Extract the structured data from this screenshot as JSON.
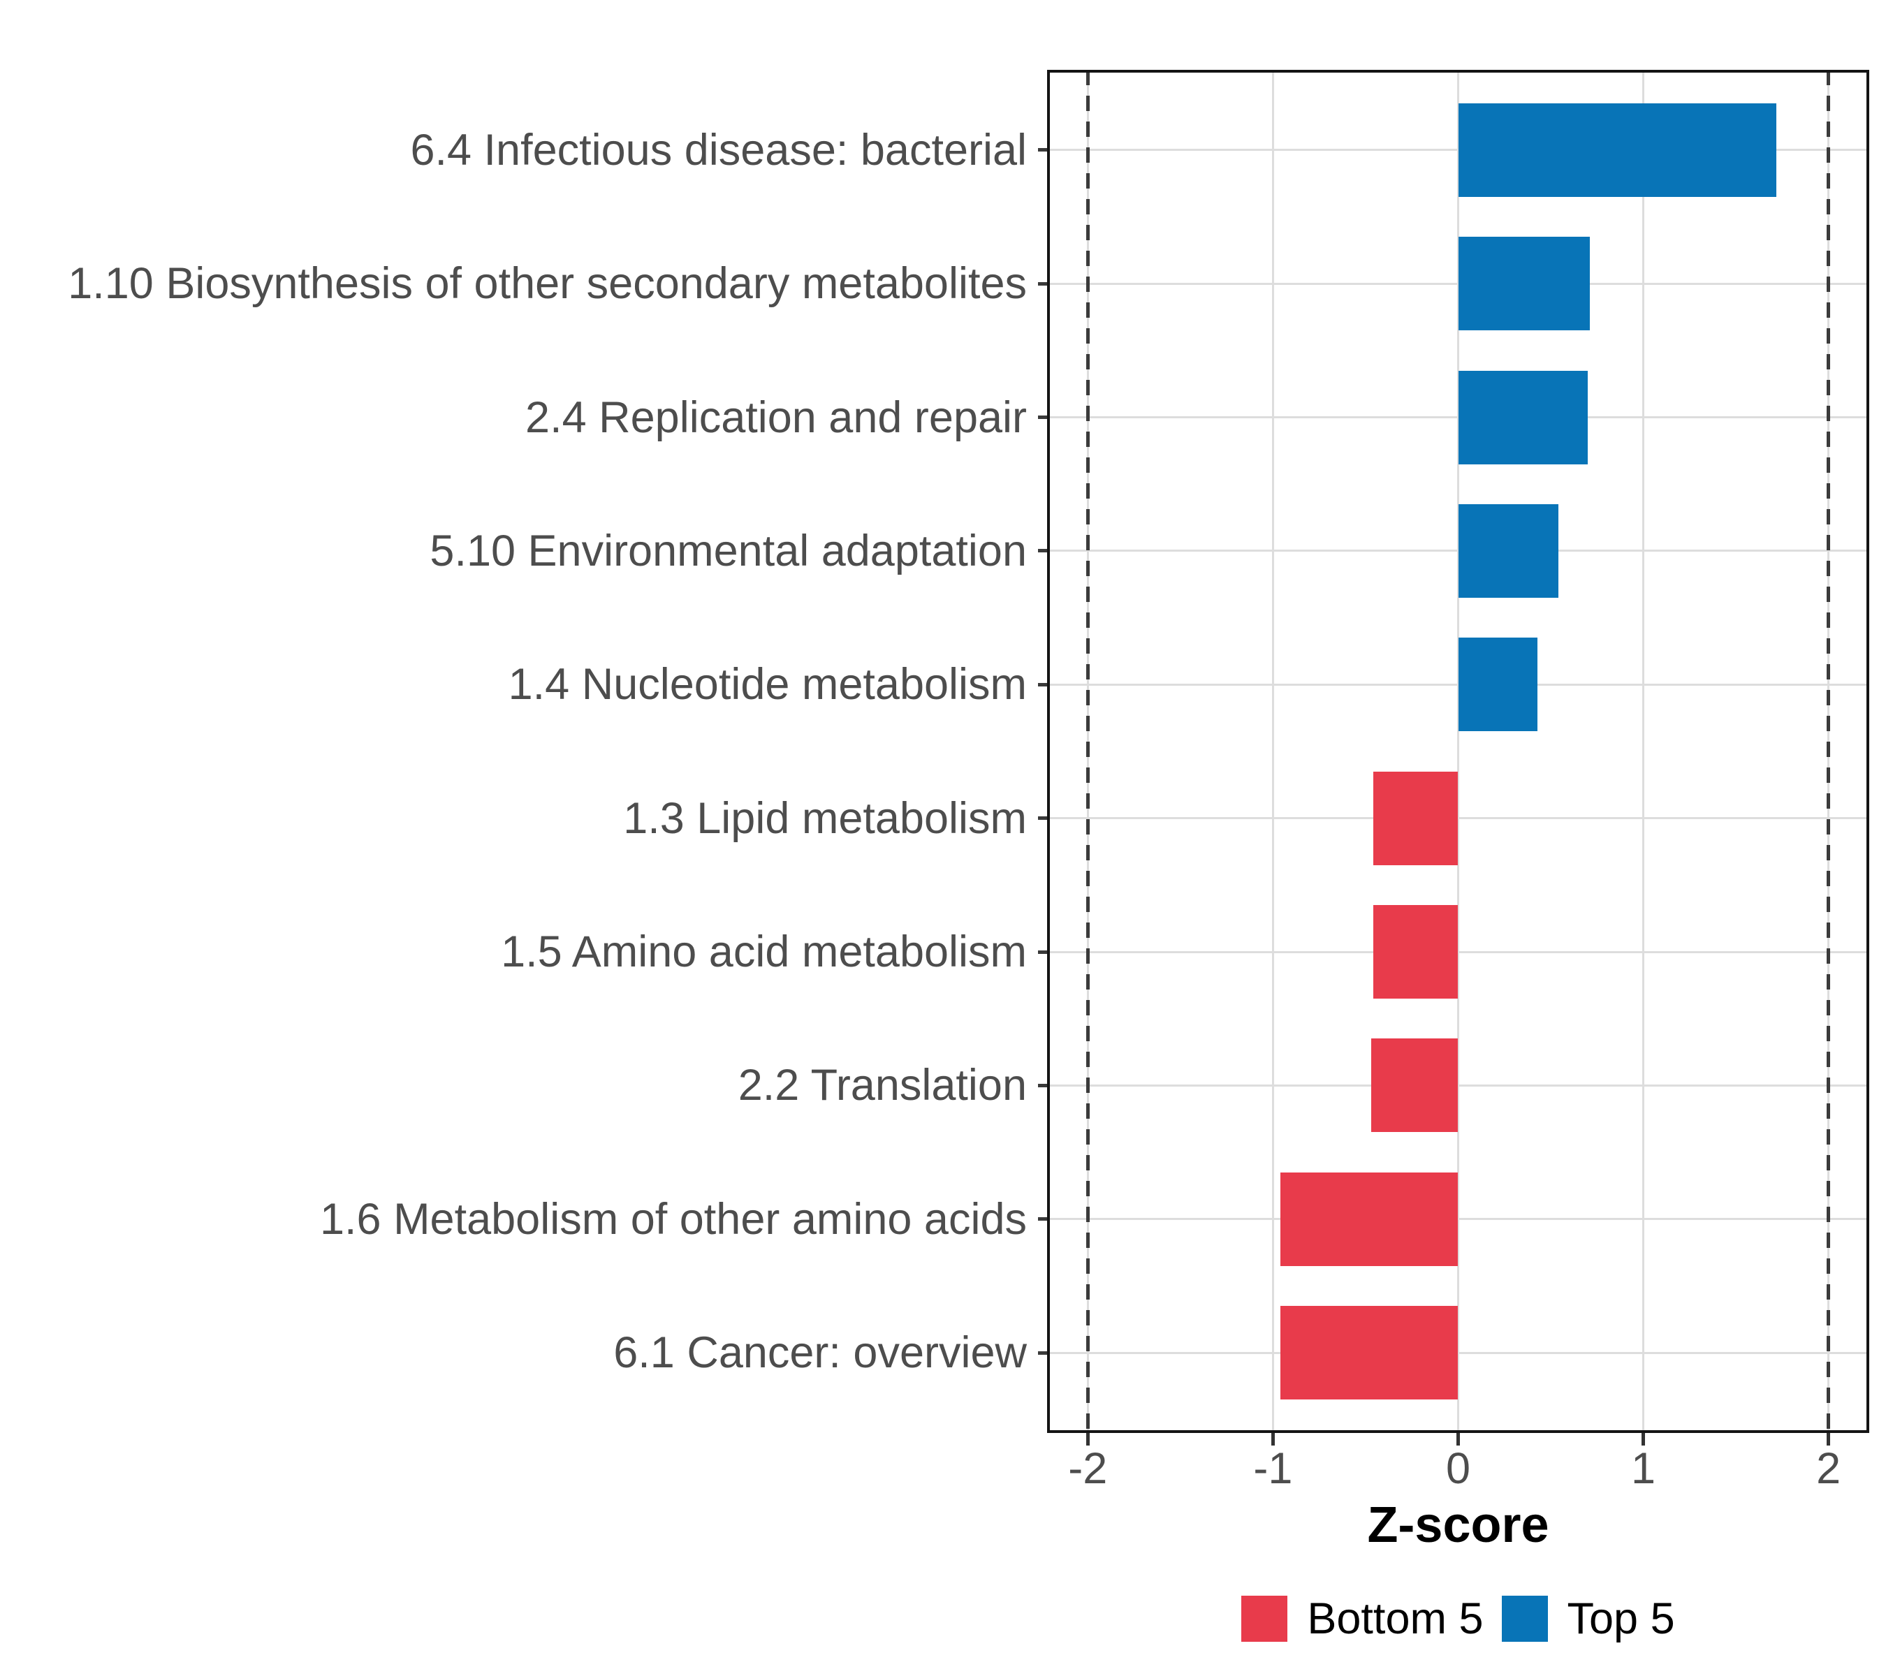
{
  "chart_data": {
    "type": "bar",
    "orientation": "horizontal",
    "title": "",
    "xlabel": "Z-score",
    "ylabel": "",
    "xlim": [
      -2.22,
      2.22
    ],
    "x_ticks": [
      -2,
      -1,
      0,
      1,
      2
    ],
    "x_tick_labels": [
      "-2",
      "-1",
      "0",
      "1",
      "2"
    ],
    "reference_lines_x": [
      -2,
      2
    ],
    "grid": "major-only",
    "legend_position": "bottom",
    "categories": [
      "6.4 Infectious disease: bacterial",
      "1.10 Biosynthesis of other secondary metabolites",
      "2.4 Replication and repair",
      "5.10 Environmental adaptation",
      "1.4 Nucleotide metabolism",
      "1.3 Lipid metabolism",
      "1.5 Amino acid metabolism",
      "2.2 Translation",
      "1.6 Metabolism of other amino acids",
      "6.1 Cancer: overview"
    ],
    "values": [
      1.72,
      0.71,
      0.7,
      0.54,
      0.43,
      -0.46,
      -0.46,
      -0.47,
      -0.96,
      -0.96
    ],
    "groups": [
      "Top 5",
      "Top 5",
      "Top 5",
      "Top 5",
      "Top 5",
      "Bottom 5",
      "Bottom 5",
      "Bottom 5",
      "Bottom 5",
      "Bottom 5"
    ],
    "colors": {
      "Top 5": "#0874B7",
      "Bottom 5": "#E83B4B"
    },
    "legend": [
      {
        "label": "Bottom 5",
        "color": "#E83B4B"
      },
      {
        "label": "Top 5",
        "color": "#0874B7"
      }
    ]
  },
  "style": {
    "gridline_color": "#dddddd",
    "panel_border_color": "#141414",
    "axis_text_color": "#4d4d4d",
    "reference_line_color": "#3b3b3b",
    "background": "#ffffff"
  }
}
